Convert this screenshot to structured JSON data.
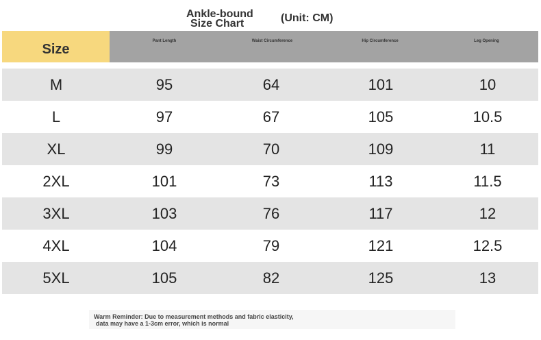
{
  "header": {
    "title_lines": [
      "Ankle-bound",
      "Size Chart"
    ],
    "unit": "(Unit: CM)"
  },
  "table": {
    "columns": [
      "Size",
      "Pant Length",
      "Waist Circumference",
      "Hip Circumference",
      "Leg Opening"
    ],
    "rows": [
      [
        "M",
        95,
        64,
        101,
        10
      ],
      [
        "L",
        97,
        67,
        105,
        10.5
      ],
      [
        "XL",
        99,
        70,
        109,
        11
      ],
      [
        "2XL",
        101,
        73,
        113,
        11.5
      ],
      [
        "3XL",
        103,
        76,
        117,
        12
      ],
      [
        "4XL",
        104,
        79,
        121,
        12.5
      ],
      [
        "5XL",
        105,
        82,
        125,
        13
      ]
    ]
  },
  "footer": {
    "lines": [
      "Warm Reminder: Due to measurement methods and fabric elasticity,",
      "data may have a 1-3cm error, which is normal"
    ]
  }
}
